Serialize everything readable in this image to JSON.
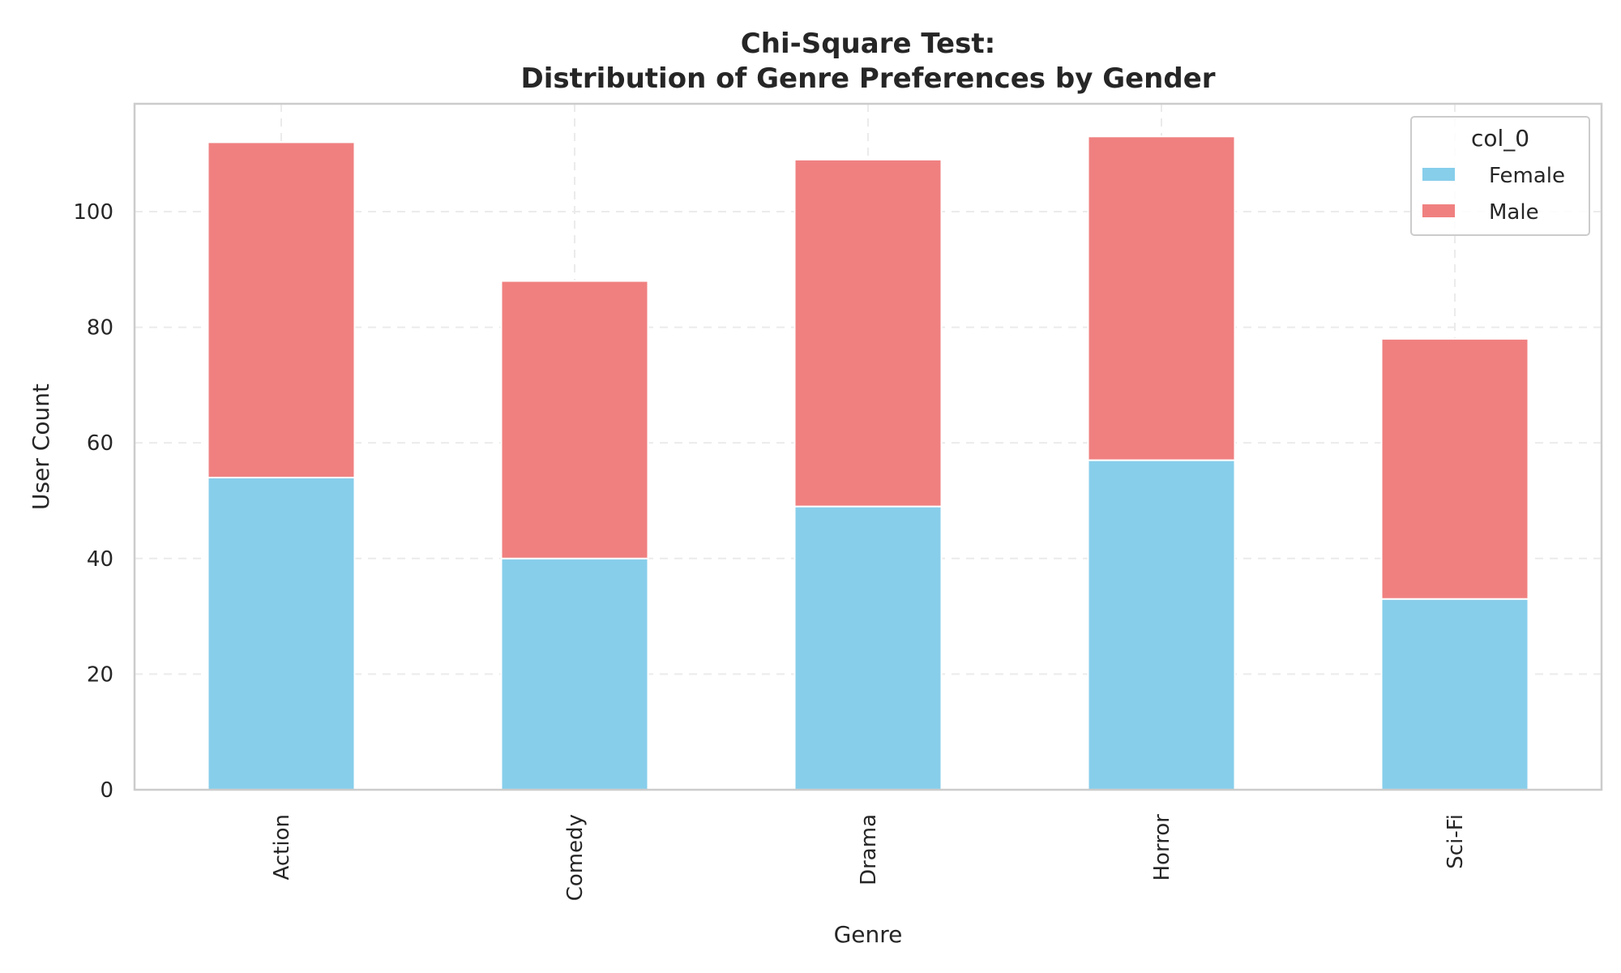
{
  "chart_data": {
    "type": "bar",
    "stacked": true,
    "title_line1": "Chi-Square Test:",
    "title_line2": "Distribution of Genre Preferences by Gender",
    "xlabel": "Genre",
    "ylabel": "User Count",
    "categories": [
      "Action",
      "Comedy",
      "Drama",
      "Horror",
      "Sci-Fi"
    ],
    "series": [
      {
        "name": "Female",
        "values": [
          54,
          40,
          49,
          57,
          33
        ],
        "color": "#87ceeb"
      },
      {
        "name": "Male",
        "values": [
          58,
          48,
          60,
          56,
          45
        ],
        "color": "#f08080"
      }
    ],
    "ylim": [
      0,
      118.65
    ],
    "yticks": [
      0,
      20,
      40,
      60,
      80,
      100
    ],
    "ytick_labels": [
      "0",
      "20",
      "40",
      "60",
      "80",
      "100"
    ],
    "grid": true,
    "legend": {
      "title": "col_0",
      "placement": "top-right"
    }
  }
}
